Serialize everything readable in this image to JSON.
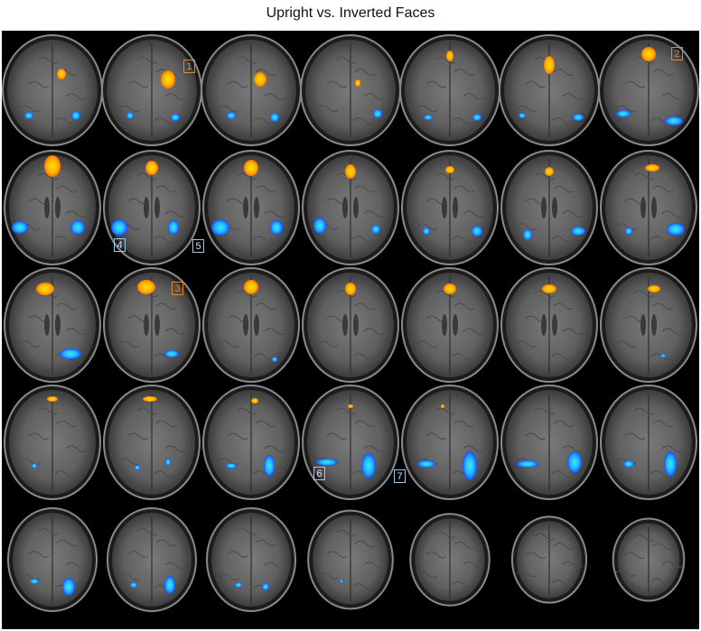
{
  "figure": {
    "title": "Upright vs. Inverted Faces"
  },
  "colors": {
    "background": "#000000",
    "activation_positive": "#ffc400",
    "activation_positive_edge": "#ff7a00",
    "activation_negative": "#2fc8ff",
    "activation_negative_edge": "#1e5cff",
    "brain_tissue": "#6a6a6a"
  },
  "labels": [
    {
      "text": "1",
      "kind": "positive"
    },
    {
      "text": "2",
      "kind": "positive"
    },
    {
      "text": "3",
      "kind": "positive"
    },
    {
      "text": "4",
      "kind": "negative"
    },
    {
      "text": "5",
      "kind": "negative"
    },
    {
      "text": "6",
      "kind": "negative"
    },
    {
      "text": "7",
      "kind": "negative"
    }
  ]
}
